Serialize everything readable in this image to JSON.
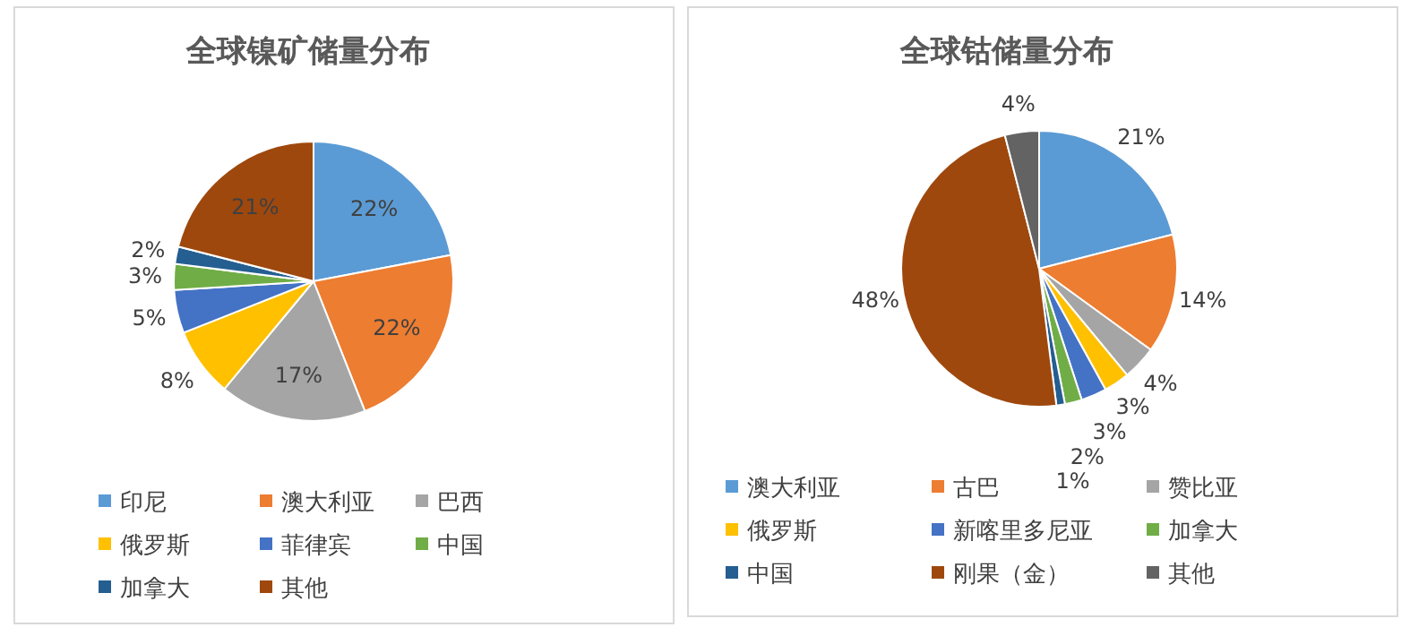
{
  "chart_data": [
    {
      "type": "pie",
      "title": "全球镍矿储量分布",
      "categories": [
        "印尼",
        "澳大利亚",
        "巴西",
        "俄罗斯",
        "菲律宾",
        "中国",
        "加拿大",
        "其他"
      ],
      "values": [
        22,
        22,
        17,
        8,
        5,
        3,
        2,
        21
      ],
      "value_labels": [
        "22%",
        "22%",
        "17%",
        "8%",
        "5%",
        "3%",
        "2%",
        "21%"
      ],
      "colors": [
        "#5b9bd5",
        "#ed7d31",
        "#a5a5a5",
        "#ffc000",
        "#4472c4",
        "#70ad47",
        "#255e91",
        "#9e480e"
      ],
      "legend": "bottom"
    },
    {
      "type": "pie",
      "title": "全球钴储量分布",
      "categories": [
        "澳大利亚",
        "古巴",
        "赞比亚",
        "俄罗斯",
        "新喀里多尼亚",
        "加拿大",
        "中国",
        "刚果（金）",
        "其他"
      ],
      "values": [
        21,
        14,
        4,
        3,
        3,
        2,
        1,
        48,
        4
      ],
      "value_labels": [
        "21%",
        "14%",
        "4%",
        "3%",
        "3%",
        "2%",
        "1%",
        "48%",
        "4%"
      ],
      "colors": [
        "#5b9bd5",
        "#ed7d31",
        "#a5a5a5",
        "#ffc000",
        "#4472c4",
        "#70ad47",
        "#255e91",
        "#9e480e",
        "#636363"
      ],
      "legend": "bottom"
    }
  ]
}
